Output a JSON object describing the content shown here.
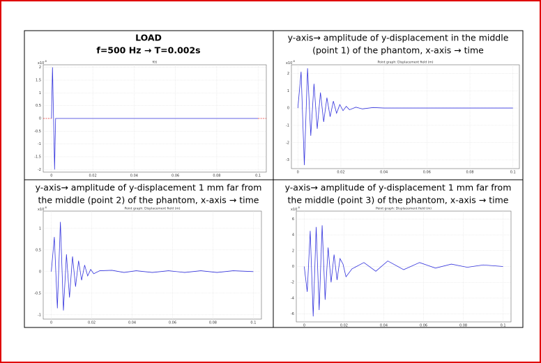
{
  "chart_data": [
    {
      "type": "line",
      "caption": [
        "LOAD",
        "f=500 Hz → T=0.002s"
      ],
      "title": "f(t)",
      "y_scale_label": {
        "base": "x10",
        "exponent": "-8"
      },
      "xlim": [
        -0.004,
        0.104
      ],
      "ylim": [
        -2.1,
        2.1
      ],
      "xticks": [
        0,
        0.02,
        0.04,
        0.06,
        0.08,
        0.1
      ],
      "yticks": [
        -2,
        -1.5,
        -1,
        -0.5,
        0,
        0.5,
        1,
        1.5,
        2
      ],
      "grid": true,
      "series": [
        {
          "color": "#3333dd",
          "dash": false,
          "x": [
            0,
            0.0005,
            0.001,
            0.0015,
            0.002,
            0.1
          ],
          "values": [
            0,
            2,
            0,
            -2,
            0,
            0
          ]
        },
        {
          "color": "#ee3333",
          "dash": true,
          "x": [
            -0.004,
            0,
            0.05,
            0.1,
            0.104
          ],
          "values": [
            0,
            0,
            null,
            0,
            0
          ]
        }
      ]
    },
    {
      "type": "line",
      "caption": [
        "y-axis→ amplitude of y-displacement in the middle",
        "(point 1) of the phantom, x-axis → time"
      ],
      "title": "Point graph: Displacement field (m)",
      "y_scale_label": {
        "base": "x10",
        "exponent": "-8"
      },
      "xlim": [
        -0.003,
        0.103
      ],
      "ylim": [
        -3.5,
        2.5
      ],
      "xticks": [
        0,
        0.02,
        0.04,
        0.06,
        0.08,
        0.1
      ],
      "yticks": [
        -3,
        -2,
        -1,
        0,
        1,
        2
      ],
      "grid": true,
      "series": [
        {
          "color": "#3333dd",
          "dash": false,
          "x": [
            0,
            0.0015,
            0.003,
            0.0045,
            0.006,
            0.0075,
            0.009,
            0.0105,
            0.012,
            0.0135,
            0.015,
            0.0165,
            0.018,
            0.0195,
            0.021,
            0.0225,
            0.024,
            0.027,
            0.03,
            0.035,
            0.04,
            0.05,
            0.1
          ],
          "values": [
            0,
            2.1,
            -3.3,
            2.3,
            -1.6,
            1.4,
            -1.2,
            0.9,
            -0.8,
            0.6,
            -0.5,
            0.4,
            -0.3,
            0.2,
            -0.15,
            0.1,
            -0.1,
            0.05,
            -0.05,
            0.03,
            0,
            0,
            0
          ]
        }
      ]
    },
    {
      "type": "line",
      "caption": [
        "y-axis→ amplitude of y-displacement 1 mm far from",
        "the middle (point 2) of the phantom, x-axis → time"
      ],
      "title": "Point graph: Displacement field (m)",
      "y_scale_label": {
        "base": "x10",
        "exponent": "-8"
      },
      "xlim": [
        -0.004,
        0.104
      ],
      "ylim": [
        -1.1,
        1.4
      ],
      "xticks": [
        0,
        0.02,
        0.04,
        0.06,
        0.08,
        0.1
      ],
      "yticks": [
        -1,
        -0.5,
        0,
        0.5,
        1
      ],
      "grid": true,
      "series": [
        {
          "color": "#3333dd",
          "dash": false,
          "x": [
            0,
            0.0015,
            0.003,
            0.0045,
            0.006,
            0.0075,
            0.009,
            0.0105,
            0.012,
            0.0135,
            0.015,
            0.0165,
            0.018,
            0.0195,
            0.021,
            0.024,
            0.03,
            0.036,
            0.042,
            0.05,
            0.058,
            0.066,
            0.074,
            0.082,
            0.09,
            0.1
          ],
          "values": [
            0,
            0.8,
            -0.85,
            1.15,
            -0.9,
            0.4,
            -0.6,
            0.35,
            -0.35,
            0.25,
            -0.2,
            0.15,
            -0.1,
            0.05,
            -0.05,
            0.02,
            0.03,
            -0.02,
            0.02,
            -0.02,
            0.02,
            -0.02,
            0.02,
            -0.02,
            0.02,
            0
          ]
        }
      ]
    },
    {
      "type": "line",
      "caption": [
        "y-axis→ amplitude of y-displacement 1 mm far from",
        "the middle (point 3) of the phantom, x-axis → time"
      ],
      "title": "Point graph: Displacement field (m)",
      "y_scale_label": {
        "base": "x10",
        "exponent": "-8"
      },
      "xlim": [
        -0.004,
        0.104
      ],
      "ylim": [
        -7,
        7
      ],
      "xticks": [
        0,
        0.02,
        0.04,
        0.06,
        0.08,
        0.1
      ],
      "yticks": [
        -6,
        -4,
        -2,
        0,
        2,
        4,
        6
      ],
      "grid": true,
      "series": [
        {
          "color": "#3333dd",
          "dash": false,
          "x": [
            0,
            0.0015,
            0.003,
            0.0045,
            0.006,
            0.0075,
            0.009,
            0.0105,
            0.012,
            0.0135,
            0.015,
            0.0165,
            0.018,
            0.0195,
            0.021,
            0.024,
            0.03,
            0.036,
            0.042,
            0.05,
            0.058,
            0.066,
            0.074,
            0.082,
            0.09,
            0.1
          ],
          "values": [
            0,
            -3.2,
            4.5,
            -6.3,
            5,
            -5.5,
            5.2,
            -4.2,
            2.4,
            -2,
            1.5,
            -1.7,
            1,
            0.3,
            -1.3,
            -0.3,
            0.5,
            -0.6,
            0.7,
            -0.4,
            0.5,
            -0.2,
            0.3,
            -0.1,
            0.2,
            0
          ]
        }
      ]
    }
  ]
}
